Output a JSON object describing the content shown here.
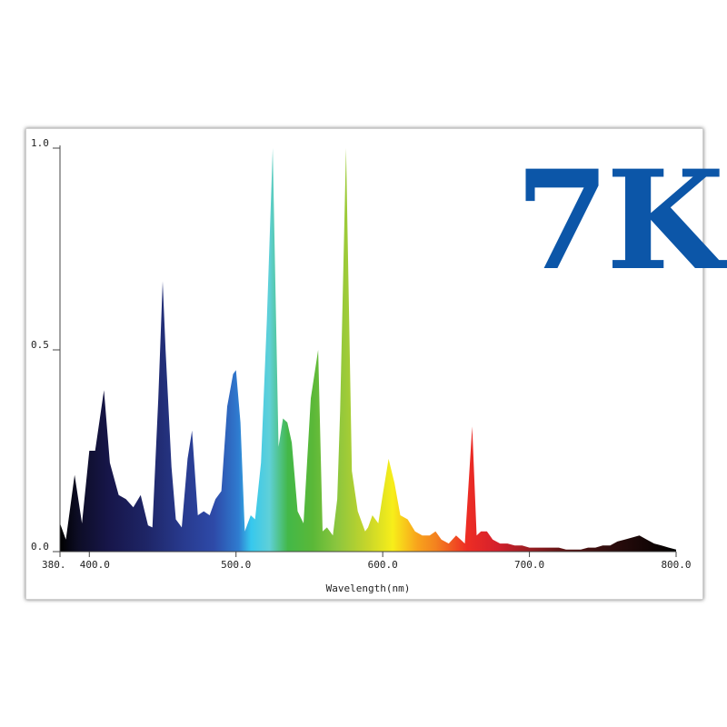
{
  "badge": {
    "label": "7K",
    "color": "#0c56a8"
  },
  "chart_data": {
    "type": "area",
    "xlabel": "Wavelength(nm)",
    "ylabel": "",
    "xlim": [
      380,
      800
    ],
    "ylim": [
      0,
      1
    ],
    "grid": false,
    "x_ticks": [
      {
        "value": 380,
        "label": "380."
      },
      {
        "value": 400,
        "label": "400.0"
      },
      {
        "value": 500,
        "label": "500.0"
      },
      {
        "value": 600,
        "label": "600.0"
      },
      {
        "value": 700,
        "label": "700.0"
      },
      {
        "value": 800,
        "label": "800.0"
      }
    ],
    "y_ticks": [
      {
        "value": 0,
        "label": "0.0"
      },
      {
        "value": 0.5,
        "label": "0.5"
      },
      {
        "value": 1,
        "label": "1.0"
      }
    ],
    "fill": "visible-spectrum",
    "x": [
      380,
      384,
      390,
      395,
      400,
      404,
      410,
      414,
      420,
      425,
      430,
      435,
      440,
      443,
      447,
      450,
      452,
      456,
      459,
      463,
      467,
      470,
      474,
      478,
      482,
      486,
      490,
      494,
      498,
      500,
      503,
      506,
      510,
      513,
      517,
      521,
      525,
      529,
      532,
      535,
      538,
      542,
      546,
      551,
      556,
      559,
      562,
      566,
      569,
      571,
      575,
      579,
      583,
      586,
      588,
      590,
      593,
      597,
      600,
      604,
      608,
      612,
      617,
      622,
      627,
      632,
      636,
      640,
      645,
      650,
      656,
      661,
      664,
      667,
      671,
      675,
      680,
      685,
      690,
      695,
      700,
      705,
      710,
      715,
      720,
      725,
      730,
      735,
      740,
      745,
      750,
      755,
      760,
      765,
      770,
      775,
      780,
      785,
      790,
      795,
      800
    ],
    "values": [
      0.07,
      0.03,
      0.19,
      0.07,
      0.25,
      0.25,
      0.4,
      0.22,
      0.14,
      0.13,
      0.11,
      0.14,
      0.065,
      0.06,
      0.38,
      0.67,
      0.5,
      0.21,
      0.08,
      0.06,
      0.23,
      0.3,
      0.09,
      0.1,
      0.09,
      0.13,
      0.15,
      0.36,
      0.44,
      0.45,
      0.32,
      0.05,
      0.09,
      0.08,
      0.22,
      0.57,
      1.0,
      0.26,
      0.33,
      0.32,
      0.27,
      0.1,
      0.07,
      0.38,
      0.5,
      0.05,
      0.06,
      0.04,
      0.13,
      0.35,
      1.0,
      0.2,
      0.1,
      0.07,
      0.05,
      0.06,
      0.09,
      0.07,
      0.14,
      0.23,
      0.17,
      0.09,
      0.08,
      0.05,
      0.04,
      0.04,
      0.05,
      0.03,
      0.02,
      0.04,
      0.02,
      0.31,
      0.04,
      0.05,
      0.05,
      0.03,
      0.02,
      0.02,
      0.015,
      0.015,
      0.01,
      0.01,
      0.01,
      0.01,
      0.01,
      0.005,
      0.005,
      0.005,
      0.01,
      0.01,
      0.015,
      0.015,
      0.025,
      0.03,
      0.035,
      0.04,
      0.03,
      0.02,
      0.015,
      0.01,
      0.005
    ]
  }
}
